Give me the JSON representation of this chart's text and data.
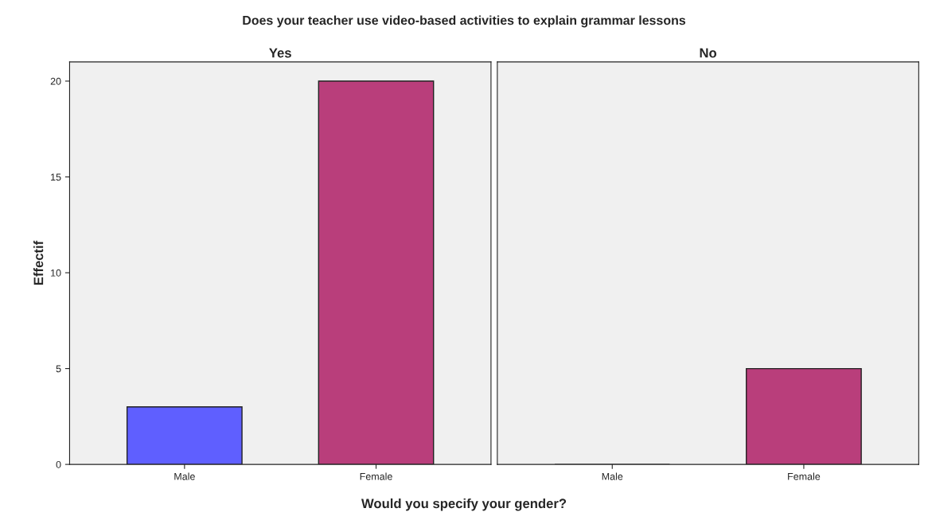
{
  "chart_data": [
    {
      "type": "bar",
      "title": "Does your teacher use video-based activities to explain grammar lessons",
      "subtitle": "Yes",
      "xlabel": "Would you specify your gender?",
      "ylabel": "Effectif",
      "categories": [
        "Male",
        "Female"
      ],
      "values": [
        3,
        20
      ],
      "colors": [
        "#5f5fff",
        "#b93e7b"
      ],
      "ylim": [
        0,
        21
      ],
      "yticks": [
        0,
        5,
        10,
        15,
        20
      ],
      "grid": false,
      "legend": false
    },
    {
      "type": "bar",
      "subtitle": "No",
      "categories": [
        "Male",
        "Female"
      ],
      "values": [
        0,
        5
      ],
      "colors": [
        "#5f5fff",
        "#b93e7b"
      ],
      "ylim": [
        0,
        21
      ],
      "yticks": [
        0,
        5,
        10,
        15,
        20
      ],
      "tick_labels": "x",
      "grid": false,
      "legend": false
    }
  ]
}
